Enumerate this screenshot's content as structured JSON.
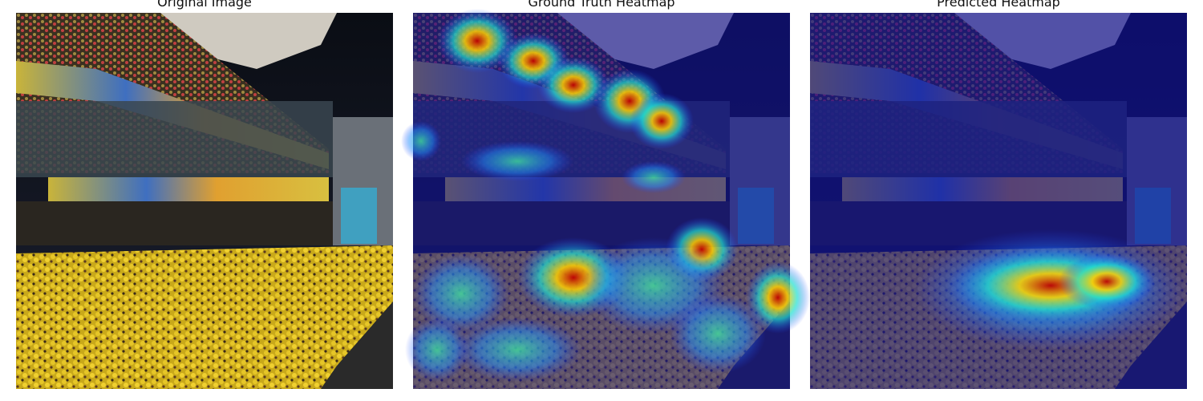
{
  "panels": [
    {
      "title": "Original Image"
    },
    {
      "title": "Ground Truth Heatmap"
    },
    {
      "title": "Predicted Heatmap"
    }
  ]
}
